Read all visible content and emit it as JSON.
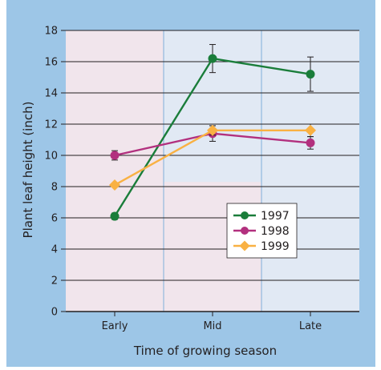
{
  "chart_data": {
    "type": "line",
    "title": "",
    "xlabel": "Time of growing season",
    "ylabel": "Plant leaf height (inch)",
    "categories": [
      "Early",
      "Mid",
      "Late"
    ],
    "ylim": [
      0,
      18
    ],
    "yticks": [
      "0",
      "2",
      "4",
      "6",
      "8",
      "10",
      "12",
      "14",
      "16",
      "18"
    ],
    "grid": true,
    "legend_position": "center-right",
    "series": [
      {
        "name": "1997",
        "color": "#1a7d3a",
        "marker": "circle",
        "values": [
          6.1,
          16.2,
          15.2
        ],
        "errors": [
          0.2,
          0.9,
          1.1
        ]
      },
      {
        "name": "1998",
        "color": "#b2307e",
        "marker": "circle",
        "values": [
          10.0,
          11.4,
          10.8
        ],
        "errors": [
          0.3,
          0.5,
          0.4
        ]
      },
      {
        "name": "1999",
        "color": "#f9b143",
        "marker": "diamond",
        "values": [
          8.1,
          11.6,
          11.6
        ],
        "errors": [
          0.0,
          0.3,
          0.4
        ]
      }
    ],
    "colors": {
      "frame_bg": "#9dc6e7",
      "panel_pink": "#f1e5ec",
      "panel_blue": "#e1e9f4",
      "panel_border": "#7fb0da",
      "gridline": "#231f20"
    }
  }
}
